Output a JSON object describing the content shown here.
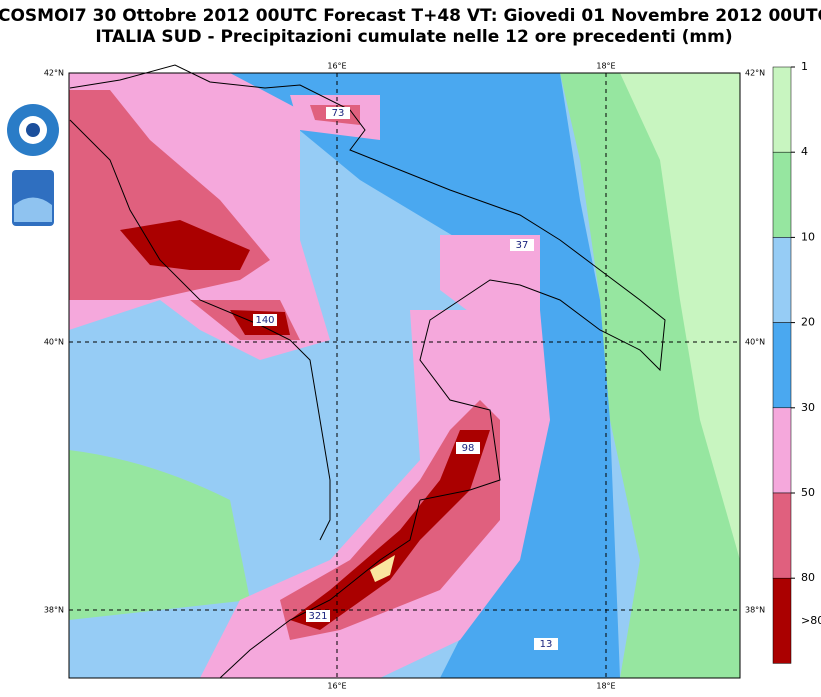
{
  "header": {
    "title": "COSMOI7 30 Ottobre 2012 00UTC Forecast T+48 VT: Giovedi 01 Novembre 2012 00UTC",
    "subtitle": "ITALIA SUD - Precipitazioni cumulate nelle 12 ore precedenti (mm)"
  },
  "legend": {
    "labels": [
      "1",
      "4",
      "10",
      "20",
      "30",
      "50",
      "80",
      ">80"
    ],
    "colors": [
      "#c8f5c0",
      "#96e6a0",
      "#96ccf5",
      "#4aa8f0",
      "#f5a8dc",
      "#e0607e",
      "#aa0000"
    ]
  },
  "grid": {
    "lon_labels": [
      "16°E",
      "18°E"
    ],
    "lat_labels": [
      "42°N",
      "40°N",
      "38°N"
    ]
  },
  "map_labels": [
    "73",
    "37",
    "140",
    "98",
    "321",
    "13"
  ]
}
